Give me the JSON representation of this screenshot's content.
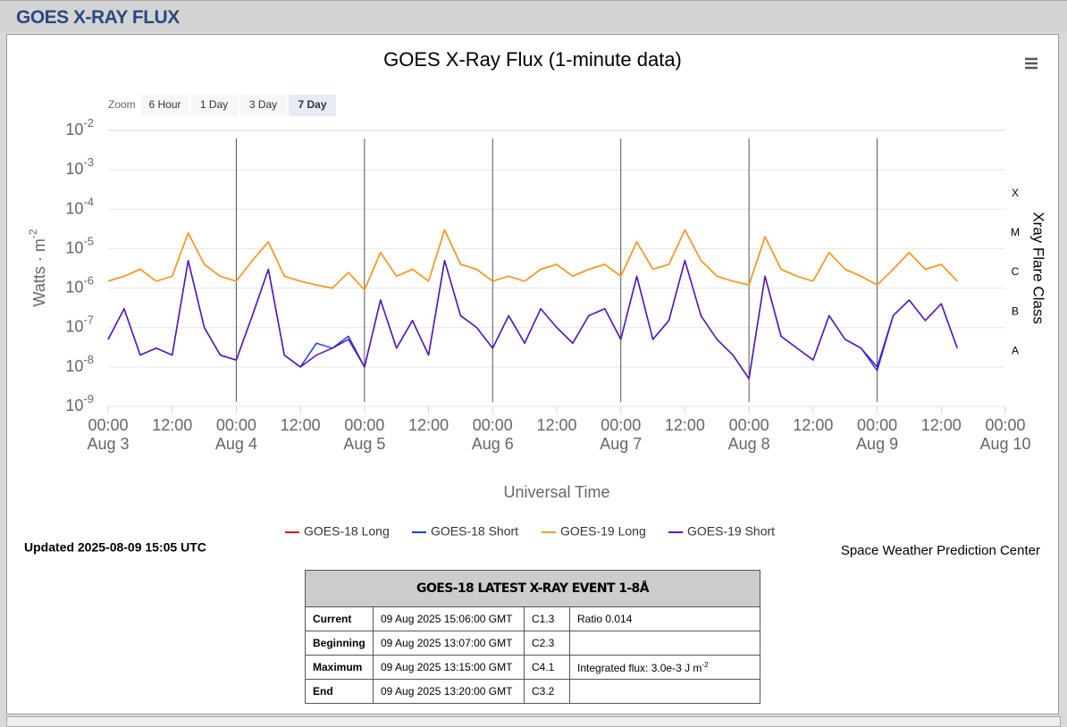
{
  "header": {
    "title": "GOES X-RAY FLUX"
  },
  "zoom": {
    "label": "Zoom",
    "buttons": [
      "6 Hour",
      "1 Day",
      "3 Day",
      "7 Day"
    ],
    "selected": 3
  },
  "chart_data": {
    "type": "line",
    "title": "GOES X-Ray Flux (1-minute data)",
    "x_label": "Universal Time",
    "y_label": {
      "text": "Watts · m",
      "sup": "-2"
    },
    "y2_label": "Xray Flare Class",
    "log_scale": true,
    "grid": true,
    "ylim": [
      1e-09,
      0.01
    ],
    "yticks": [
      {
        "value": 0.01,
        "label": "10",
        "exponent": "-2"
      },
      {
        "value": 0.001,
        "label": "10",
        "exponent": "-3"
      },
      {
        "value": 0.0001,
        "label": "10",
        "exponent": "-4"
      },
      {
        "value": 1e-05,
        "label": "10",
        "exponent": "-5"
      },
      {
        "value": 1e-06,
        "label": "10",
        "exponent": "-6"
      },
      {
        "value": 1e-07,
        "label": "10",
        "exponent": "-7"
      },
      {
        "value": 1e-08,
        "label": "10",
        "exponent": "-8"
      },
      {
        "value": 1e-09,
        "label": "10",
        "exponent": "-9"
      }
    ],
    "y2lim": [
      1e-09,
      0.01
    ],
    "y2ticks": [
      {
        "value": 0.00025,
        "label": "X"
      },
      {
        "value": 2.5e-05,
        "label": "M"
      },
      {
        "value": 2.5e-06,
        "label": "C"
      },
      {
        "value": 2.5e-07,
        "label": "B"
      },
      {
        "value": 2.5e-08,
        "label": "A"
      }
    ],
    "xlim": [
      "Aug 3 00:00",
      "Aug 10 00:00"
    ],
    "xticks": [
      {
        "value": "Aug 3 00:00",
        "label": "00:00",
        "date": "Aug 3"
      },
      {
        "value": "Aug 3 12:00",
        "label": "12:00"
      },
      {
        "value": "Aug 4 00:00",
        "label": "00:00",
        "date": "Aug 4"
      },
      {
        "value": "Aug 4 12:00",
        "label": "12:00"
      },
      {
        "value": "Aug 5 00:00",
        "label": "00:00",
        "date": "Aug 5"
      },
      {
        "value": "Aug 5 12:00",
        "label": "12:00"
      },
      {
        "value": "Aug 6 00:00",
        "label": "00:00",
        "date": "Aug 6"
      },
      {
        "value": "Aug 6 12:00",
        "label": "12:00"
      },
      {
        "value": "Aug 7 00:00",
        "label": "00:00",
        "date": "Aug 7"
      },
      {
        "value": "Aug 7 12:00",
        "label": "12:00"
      },
      {
        "value": "Aug 8 00:00",
        "label": "00:00",
        "date": "Aug 8"
      },
      {
        "value": "Aug 8 12:00",
        "label": "12:00"
      },
      {
        "value": "Aug 9 00:00",
        "label": "00:00",
        "date": "Aug 9"
      },
      {
        "value": "Aug 9 12:00",
        "label": "12:00"
      },
      {
        "value": "Aug 10 00:00",
        "label": "00:00",
        "date": "Aug 10"
      }
    ],
    "x": [
      "Aug 3 00:00",
      "Aug 3 03:00",
      "Aug 3 06:00",
      "Aug 3 09:00",
      "Aug 3 12:00",
      "Aug 3 15:00",
      "Aug 3 18:00",
      "Aug 3 21:00",
      "Aug 4 00:00",
      "Aug 4 03:00",
      "Aug 4 06:00",
      "Aug 4 09:00",
      "Aug 4 12:00",
      "Aug 4 15:00",
      "Aug 4 18:00",
      "Aug 4 21:00",
      "Aug 5 00:00",
      "Aug 5 03:00",
      "Aug 5 06:00",
      "Aug 5 09:00",
      "Aug 5 12:00",
      "Aug 5 15:00",
      "Aug 5 18:00",
      "Aug 5 21:00",
      "Aug 6 00:00",
      "Aug 6 03:00",
      "Aug 6 06:00",
      "Aug 6 09:00",
      "Aug 6 12:00",
      "Aug 6 15:00",
      "Aug 6 18:00",
      "Aug 6 21:00",
      "Aug 7 00:00",
      "Aug 7 03:00",
      "Aug 7 06:00",
      "Aug 7 09:00",
      "Aug 7 12:00",
      "Aug 7 15:00",
      "Aug 7 18:00",
      "Aug 7 21:00",
      "Aug 8 00:00",
      "Aug 8 03:00",
      "Aug 8 06:00",
      "Aug 8 09:00",
      "Aug 8 12:00",
      "Aug 8 15:00",
      "Aug 8 18:00",
      "Aug 8 21:00",
      "Aug 9 00:00",
      "Aug 9 03:00",
      "Aug 9 06:00",
      "Aug 9 09:00",
      "Aug 9 12:00",
      "Aug 9 15:00"
    ],
    "series": [
      {
        "name": "GOES-18 Long",
        "color": "#e0161b",
        "values": [
          1.5e-06,
          2e-06,
          3e-06,
          1.5e-06,
          2e-06,
          2.5e-05,
          4e-06,
          2e-06,
          1.5e-06,
          5e-06,
          1.5e-05,
          2e-06,
          1.5e-06,
          1.2e-06,
          1e-06,
          2.5e-06,
          9e-07,
          8e-06,
          2e-06,
          3e-06,
          1.5e-06,
          3e-05,
          4e-06,
          3e-06,
          1.5e-06,
          2e-06,
          1.5e-06,
          3e-06,
          4e-06,
          2e-06,
          3e-06,
          4e-06,
          2e-06,
          1.5e-05,
          3e-06,
          4e-06,
          3e-05,
          5e-06,
          2e-06,
          1.5e-06,
          1.2e-06,
          2e-05,
          3e-06,
          2e-06,
          1.5e-06,
          8e-06,
          3e-06,
          2e-06,
          1.2e-06,
          3e-06,
          8e-06,
          3e-06,
          4e-06,
          1.5e-06
        ]
      },
      {
        "name": "GOES-18 Short",
        "color": "#1a3ee8",
        "values": [
          5e-08,
          3e-07,
          2e-08,
          3e-08,
          2e-08,
          5e-06,
          1e-07,
          2e-08,
          1.5e-08,
          2e-07,
          3e-06,
          2e-08,
          1e-08,
          4e-08,
          3e-08,
          6e-08,
          1e-08,
          5e-07,
          3e-08,
          1.5e-07,
          2e-08,
          5e-06,
          2e-07,
          1e-07,
          3e-08,
          2e-07,
          4e-08,
          3e-07,
          1e-07,
          4e-08,
          2e-07,
          3e-07,
          5e-08,
          2e-06,
          5e-08,
          1.5e-07,
          5e-06,
          2e-07,
          5e-08,
          2e-08,
          5e-09,
          2e-06,
          6e-08,
          3e-08,
          1.5e-08,
          2e-07,
          5e-08,
          3e-08,
          8e-09,
          2e-07,
          5e-07,
          1.5e-07,
          4e-07,
          3e-08
        ]
      },
      {
        "name": "GOES-19 Long",
        "color": "#f5a01a",
        "values": [
          1.5e-06,
          2e-06,
          3e-06,
          1.5e-06,
          2e-06,
          2.5e-05,
          4e-06,
          2e-06,
          1.5e-06,
          5e-06,
          1.5e-05,
          2e-06,
          1.5e-06,
          1.2e-06,
          1e-06,
          2.5e-06,
          9e-07,
          8e-06,
          2e-06,
          3e-06,
          1.5e-06,
          3e-05,
          4e-06,
          3e-06,
          1.5e-06,
          2e-06,
          1.5e-06,
          3e-06,
          4e-06,
          2e-06,
          3e-06,
          4e-06,
          2e-06,
          1.5e-05,
          3e-06,
          4e-06,
          3e-05,
          5e-06,
          2e-06,
          1.5e-06,
          1.2e-06,
          2e-05,
          3e-06,
          2e-06,
          1.5e-06,
          8e-06,
          3e-06,
          2e-06,
          1.2e-06,
          3e-06,
          8e-06,
          3e-06,
          4e-06,
          1.5e-06
        ]
      },
      {
        "name": "GOES-19 Short",
        "color": "#5a14b4",
        "values": [
          5e-08,
          3e-07,
          2e-08,
          3e-08,
          2e-08,
          5e-06,
          1e-07,
          2e-08,
          1.5e-08,
          2e-07,
          3e-06,
          2e-08,
          1e-08,
          2e-08,
          3e-08,
          5e-08,
          1e-08,
          5e-07,
          3e-08,
          1.5e-07,
          2e-08,
          5e-06,
          2e-07,
          1e-07,
          3e-08,
          2e-07,
          4e-08,
          3e-07,
          1e-07,
          4e-08,
          2e-07,
          3e-07,
          5e-08,
          2e-06,
          5e-08,
          1.5e-07,
          5e-06,
          2e-07,
          5e-08,
          2e-08,
          5e-09,
          2e-06,
          6e-08,
          3e-08,
          1.5e-08,
          2e-07,
          5e-08,
          3e-08,
          1e-08,
          2e-07,
          5e-07,
          1.5e-07,
          4e-07,
          3e-08
        ]
      }
    ],
    "updated": "Updated 2025-08-09 15:05 UTC",
    "credit": "Space Weather Prediction Center"
  },
  "table": {
    "title": "GOES-18 LATEST X-RAY EVENT 1-8Å",
    "rows": [
      [
        "Current",
        "09 Aug 2025 15:06:00 GMT",
        "C1.3",
        "Ratio 0.014"
      ],
      [
        "Beginning",
        "09 Aug 2025 13:07:00 GMT",
        "C2.3"
      ],
      [
        "Maximum",
        "09 Aug 2025 13:15:00 GMT",
        "C4.1",
        {
          "text": "Integrated flux: 3.0e-3 J m",
          "sup": "-2"
        }
      ],
      [
        "End",
        "09 Aug 2025 13:20:00 GMT",
        "C3.2"
      ]
    ]
  }
}
